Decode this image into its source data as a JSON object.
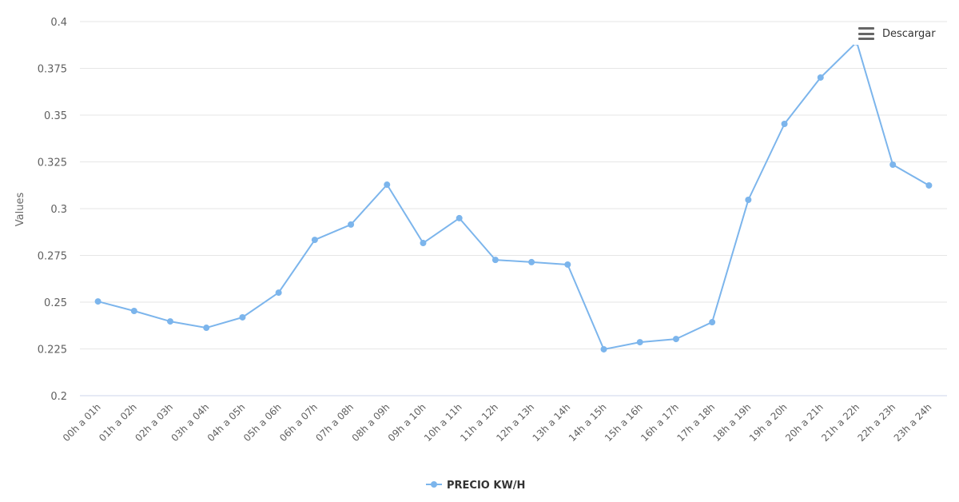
{
  "toolbar": {
    "download_label": "Descargar",
    "download_icon": "hamburger-menu-icon"
  },
  "colors": {
    "series": "#7cb5ec",
    "grid": "#e6e6e6",
    "axis_text": "#606060"
  },
  "chart_data": {
    "type": "line",
    "title": "",
    "xlabel": "",
    "ylabel": "Values",
    "ylim": [
      0.2,
      0.4
    ],
    "yticks": [
      0.2,
      0.225,
      0.25,
      0.275,
      0.3,
      0.325,
      0.35,
      0.375,
      0.4
    ],
    "ytick_labels": [
      "0.2",
      "0.225",
      "0.25",
      "0.275",
      "0.3",
      "0.325",
      "0.35",
      "0.375",
      "0.4"
    ],
    "grid": true,
    "legend_position": "bottom-center",
    "categories": [
      "00h a 01h",
      "01h a 02h",
      "02h a 03h",
      "03h a 04h",
      "04h a 05h",
      "05h a 06h",
      "06h a 07h",
      "07h a 08h",
      "08h a 09h",
      "09h a 10h",
      "10h a 11h",
      "11h a 12h",
      "12h a 13h",
      "13h a 14h",
      "14h a 15h",
      "15h a 16h",
      "16h a 17h",
      "17h a 18h",
      "18h a 19h",
      "19h a 20h",
      "20h a 21h",
      "21h a 22h",
      "22h a 23h",
      "23h a 24h"
    ],
    "series": [
      {
        "name": "PRECIO KW/H",
        "color": "#7cb5ec",
        "values": [
          0.2504,
          0.2453,
          0.2397,
          0.2363,
          0.2419,
          0.2551,
          0.2833,
          0.2915,
          0.3128,
          0.2816,
          0.2949,
          0.2726,
          0.2714,
          0.2701,
          0.2248,
          0.2286,
          0.2303,
          0.2393,
          0.3047,
          0.3453,
          0.3701,
          0.389,
          0.3235,
          0.3124
        ]
      }
    ]
  }
}
